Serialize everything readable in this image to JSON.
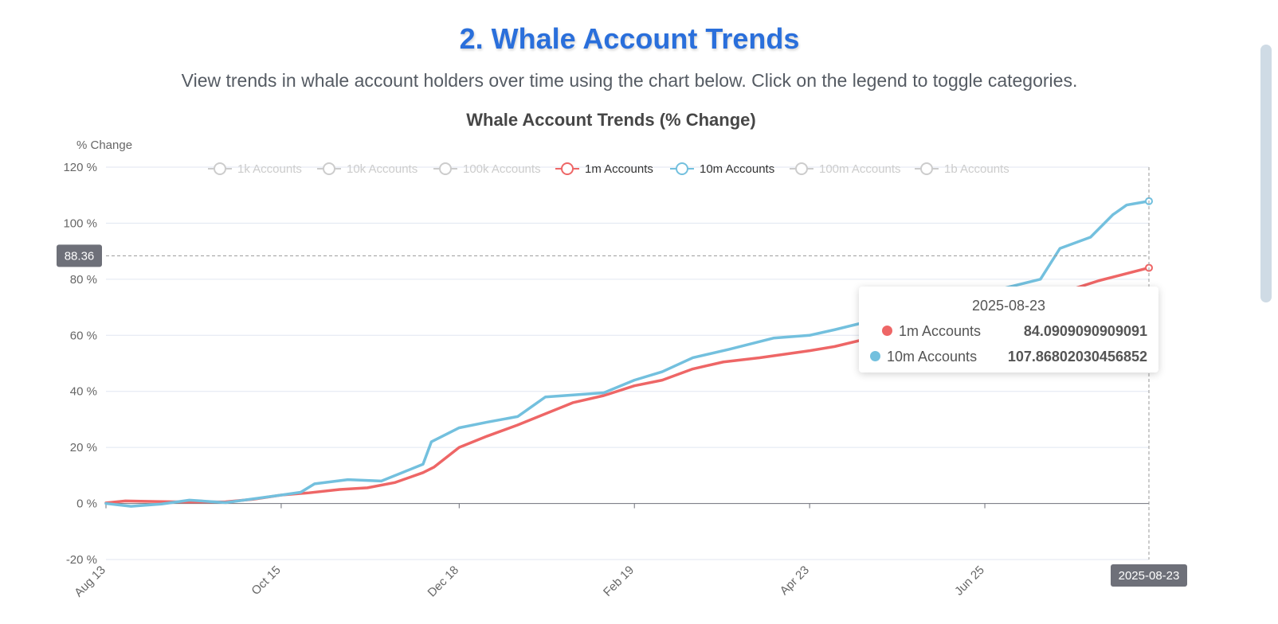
{
  "page": {
    "title": "2. Whale Account Trends",
    "description": "View trends in whale account holders over time using the chart below. Click on the legend to toggle categories."
  },
  "chart_data": {
    "type": "line",
    "title": "Whale Account Trends (% Change)",
    "ylabel": "% Change",
    "xlabel": "",
    "ylim": [
      -20,
      120
    ],
    "yticks": [
      -20,
      0,
      20,
      40,
      60,
      80,
      100,
      120
    ],
    "ytick_suffix": " %",
    "x_range": [
      "2024-08-13",
      "2025-08-23"
    ],
    "xticks": [
      {
        "label": "Aug 13",
        "date": "2024-08-13"
      },
      {
        "label": "Oct 15",
        "date": "2024-10-15"
      },
      {
        "label": "Dec 18",
        "date": "2024-12-18"
      },
      {
        "label": "Feb 19",
        "date": "2025-02-19"
      },
      {
        "label": "Apr 23",
        "date": "2025-04-23"
      },
      {
        "label": "Jun 25",
        "date": "2025-06-25"
      }
    ],
    "grid": true,
    "legend_position": "top-center",
    "legend": [
      {
        "name": "1k Accounts",
        "active": false,
        "color": "#cccccc"
      },
      {
        "name": "10k Accounts",
        "active": false,
        "color": "#cccccc"
      },
      {
        "name": "100k Accounts",
        "active": false,
        "color": "#cccccc"
      },
      {
        "name": "1m Accounts",
        "active": true,
        "color": "#ee6666"
      },
      {
        "name": "10m Accounts",
        "active": true,
        "color": "#73c0de"
      },
      {
        "name": "100m Accounts",
        "active": false,
        "color": "#cccccc"
      },
      {
        "name": "1b Accounts",
        "active": false,
        "color": "#cccccc"
      }
    ],
    "series": [
      {
        "name": "1m Accounts",
        "color": "#ee6666",
        "points": [
          [
            "2024-08-13",
            0.2
          ],
          [
            "2024-08-20",
            0.9
          ],
          [
            "2024-08-31",
            0.7
          ],
          [
            "2024-09-12",
            0.5
          ],
          [
            "2024-09-25",
            0.6
          ],
          [
            "2024-10-05",
            1.5
          ],
          [
            "2024-10-15",
            3.0
          ],
          [
            "2024-10-25",
            3.8
          ],
          [
            "2024-11-05",
            5.0
          ],
          [
            "2024-11-15",
            5.6
          ],
          [
            "2024-11-25",
            7.5
          ],
          [
            "2024-12-05",
            11.0
          ],
          [
            "2024-12-09",
            13.0
          ],
          [
            "2024-12-18",
            20.0
          ],
          [
            "2024-12-28",
            24.0
          ],
          [
            "2025-01-08",
            28.0
          ],
          [
            "2025-01-18",
            32.0
          ],
          [
            "2025-01-28",
            36.0
          ],
          [
            "2025-02-08",
            38.5
          ],
          [
            "2025-02-19",
            42.0
          ],
          [
            "2025-03-01",
            44.0
          ],
          [
            "2025-03-12",
            48.0
          ],
          [
            "2025-03-23",
            50.5
          ],
          [
            "2025-04-05",
            52.0
          ],
          [
            "2025-04-23",
            54.5
          ],
          [
            "2025-05-02",
            56.0
          ],
          [
            "2025-07-25",
            76.0
          ],
          [
            "2025-08-05",
            79.5
          ],
          [
            "2025-08-23",
            84.09
          ]
        ]
      },
      {
        "name": "10m Accounts",
        "color": "#73c0de",
        "points": [
          [
            "2024-08-13",
            0.0
          ],
          [
            "2024-08-22",
            -1.0
          ],
          [
            "2024-09-02",
            -0.2
          ],
          [
            "2024-09-12",
            1.2
          ],
          [
            "2024-09-25",
            0.3
          ],
          [
            "2024-10-15",
            3.0
          ],
          [
            "2024-10-22",
            4.0
          ],
          [
            "2024-10-27",
            7.0
          ],
          [
            "2024-11-08",
            8.5
          ],
          [
            "2024-11-20",
            8.0
          ],
          [
            "2024-11-30",
            12.0
          ],
          [
            "2024-12-05",
            14.0
          ],
          [
            "2024-12-08",
            22.0
          ],
          [
            "2024-12-18",
            27.0
          ],
          [
            "2024-12-28",
            29.0
          ],
          [
            "2025-01-08",
            31.0
          ],
          [
            "2025-01-18",
            38.0
          ],
          [
            "2025-02-08",
            39.5
          ],
          [
            "2025-02-19",
            44.0
          ],
          [
            "2025-03-01",
            47.0
          ],
          [
            "2025-03-12",
            52.0
          ],
          [
            "2025-03-25",
            55.0
          ],
          [
            "2025-04-10",
            59.0
          ],
          [
            "2025-04-23",
            60.0
          ],
          [
            "2025-05-02",
            62.0
          ],
          [
            "2025-07-15",
            80.0
          ],
          [
            "2025-07-22",
            91.0
          ],
          [
            "2025-08-02",
            95.0
          ],
          [
            "2025-08-10",
            103.0
          ],
          [
            "2025-08-15",
            106.5
          ],
          [
            "2025-08-23",
            107.87
          ]
        ]
      }
    ],
    "axis_pointer": {
      "y_value": "88.36",
      "x_label": "2025-08-23"
    },
    "tooltip": {
      "date": "2025-08-23",
      "rows": [
        {
          "name": "1m Accounts",
          "value": "84.0909090909091",
          "color": "#ee6666"
        },
        {
          "name": "10m Accounts",
          "value": "107.86802030456852",
          "color": "#73c0de"
        }
      ]
    }
  }
}
